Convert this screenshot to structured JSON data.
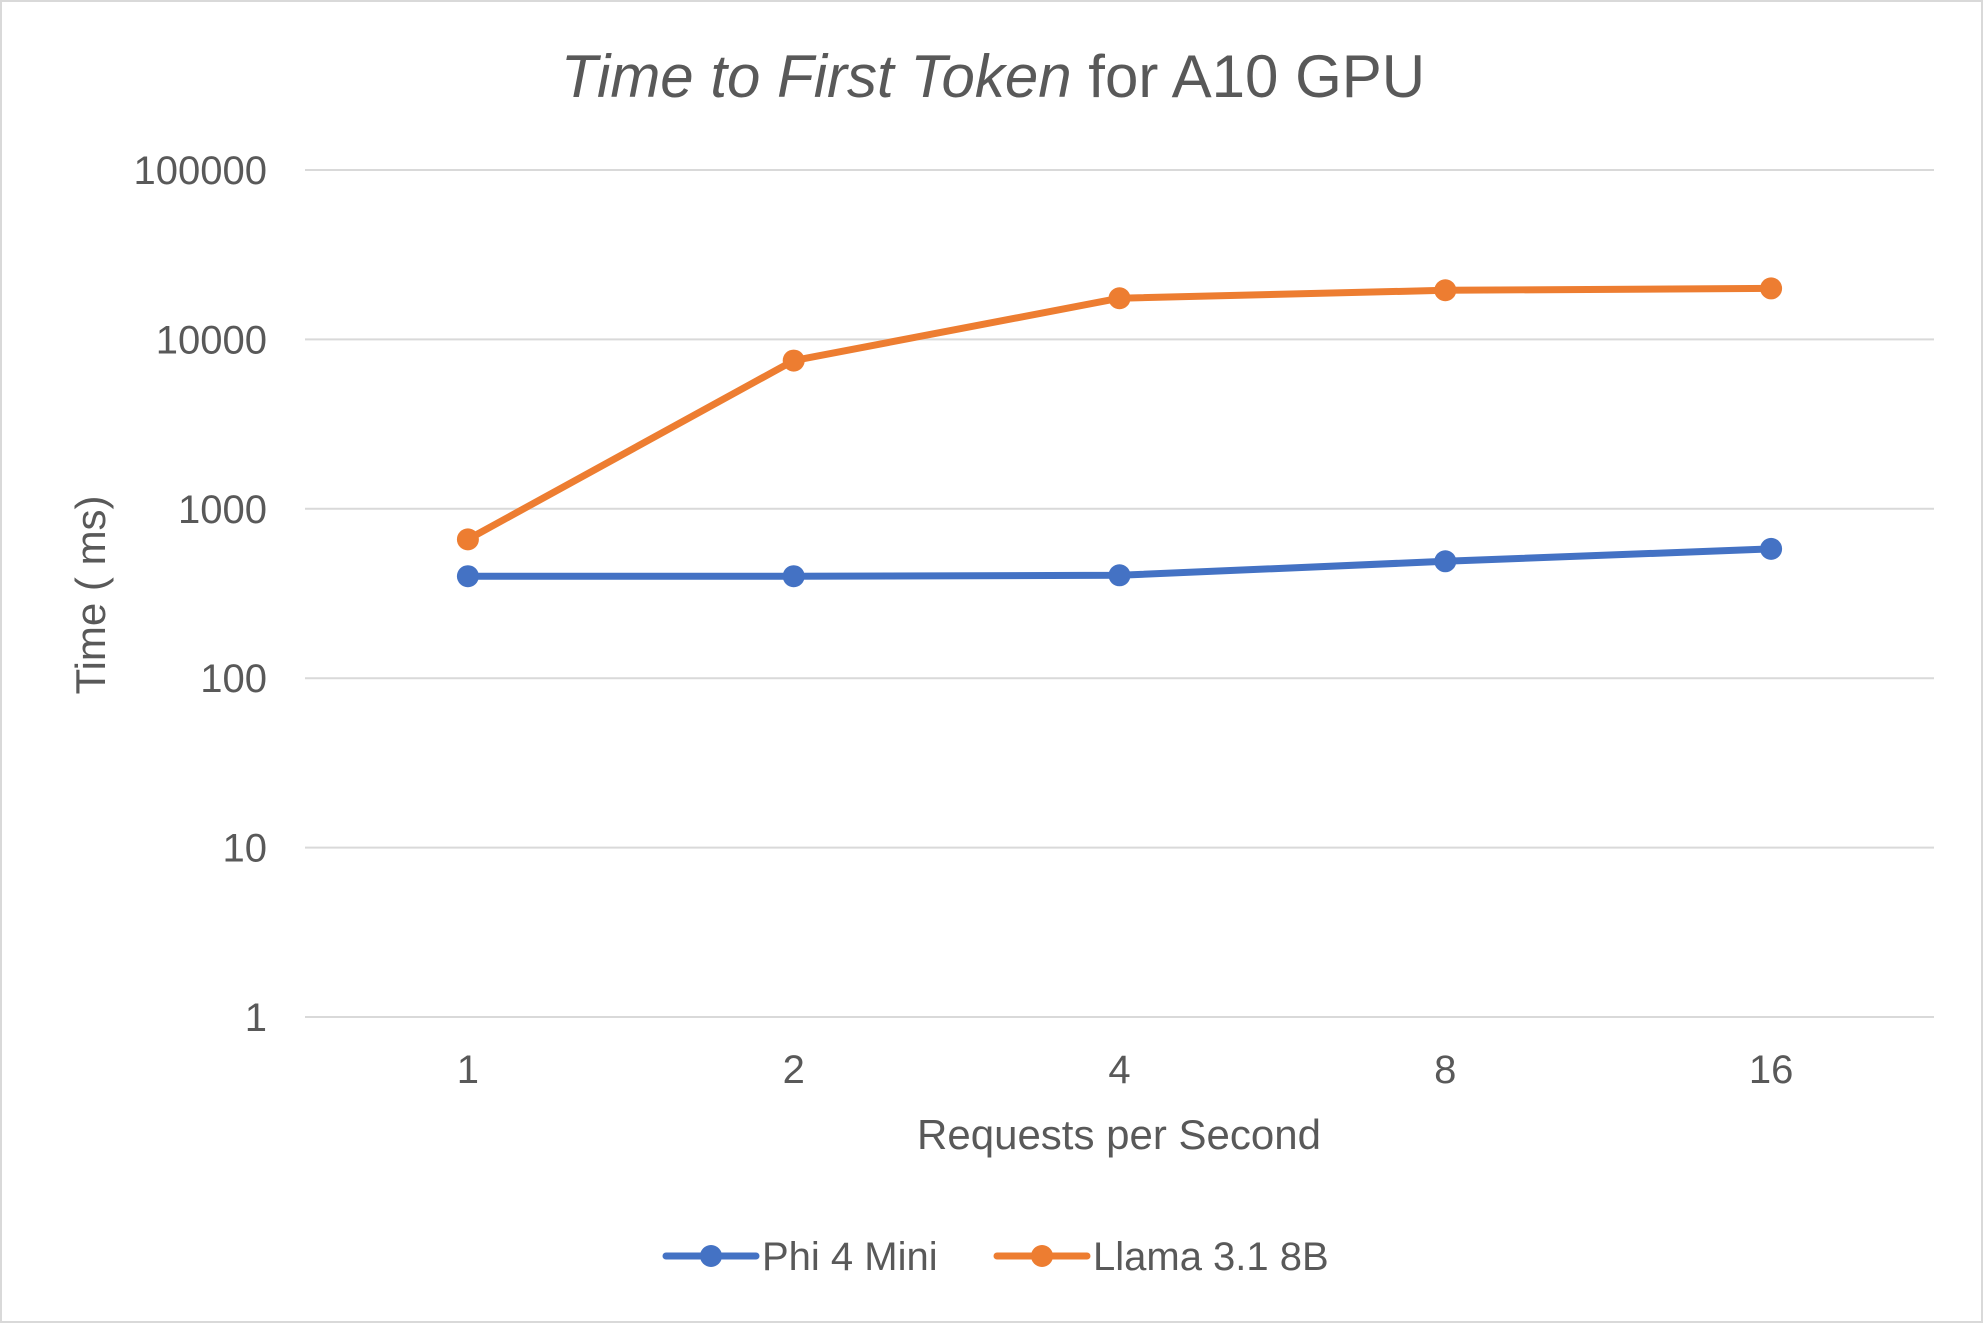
{
  "chart_data": {
    "type": "line",
    "title_italic": "Time to First Token",
    "title_rest": " for A10 GPU",
    "xlabel": "Requests per Second",
    "ylabel": "Time ( ms)",
    "y_scale": "log",
    "ylim": [
      1,
      100000
    ],
    "y_ticks": [
      "1",
      "10",
      "100",
      "1000",
      "10000",
      "100000"
    ],
    "categories": [
      "1",
      "2",
      "4",
      "8",
      "16"
    ],
    "grid": true,
    "legend_position": "bottom",
    "series": [
      {
        "name": "Phi 4 Mini",
        "color": "#4472c4",
        "values": [
          400,
          400,
          405,
          490,
          580
        ]
      },
      {
        "name": "Llama 3.1 8B",
        "color": "#ed7d31",
        "values": [
          660,
          7500,
          17500,
          19500,
          20000
        ]
      }
    ]
  }
}
